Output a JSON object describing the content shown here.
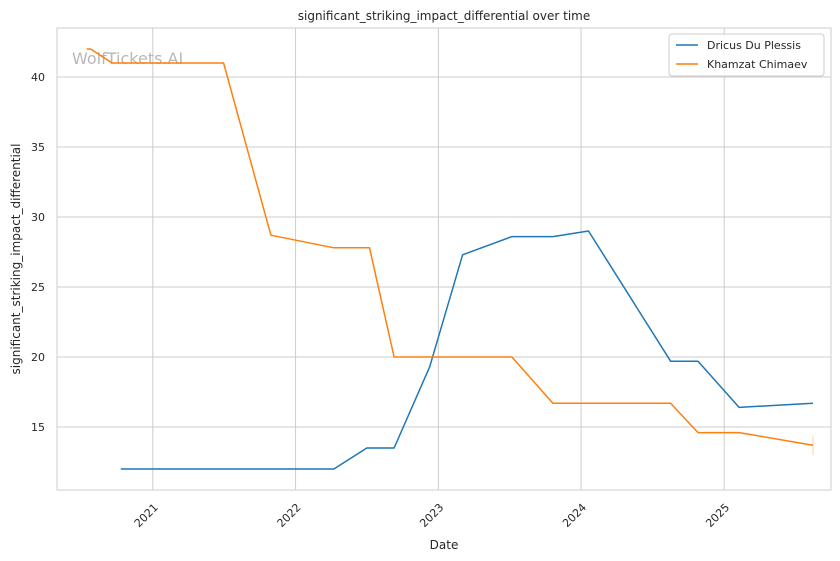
{
  "chart_data": {
    "type": "line",
    "title": "significant_striking_impact_differential over time",
    "xlabel": "Date",
    "ylabel": "significant_striking_impact_differential",
    "watermark": "WolfTickets.AI",
    "xlim": [
      "2020-05-01",
      "2025-10-01"
    ],
    "ylim": [
      10.5,
      43.5
    ],
    "x_ticks": [
      {
        "date": "2021-01-01",
        "label": "2021"
      },
      {
        "date": "2022-01-01",
        "label": "2022"
      },
      {
        "date": "2023-01-01",
        "label": "2023"
      },
      {
        "date": "2024-01-01",
        "label": "2024"
      },
      {
        "date": "2025-01-01",
        "label": "2025"
      }
    ],
    "y_ticks": [
      15,
      20,
      25,
      30,
      35,
      40
    ],
    "grid": true,
    "legend_position": "top-right",
    "series": [
      {
        "name": "Dricus Du Plessis",
        "color": "#1f77b4",
        "points": [
          {
            "x": "2020-10-11",
            "y": 12.0
          },
          {
            "x": "2022-04-09",
            "y": 12.0
          },
          {
            "x": "2022-07-02",
            "y": 13.5
          },
          {
            "x": "2022-09-10",
            "y": 13.5
          },
          {
            "x": "2022-12-10",
            "y": 19.3
          },
          {
            "x": "2023-03-04",
            "y": 27.3
          },
          {
            "x": "2023-07-08",
            "y": 28.6
          },
          {
            "x": "2023-10-21",
            "y": 28.6
          },
          {
            "x": "2024-01-20",
            "y": 29.0
          },
          {
            "x": "2024-08-17",
            "y": 19.7
          },
          {
            "x": "2024-10-26",
            "y": 19.7
          },
          {
            "x": "2025-02-08",
            "y": 16.4
          },
          {
            "x": "2025-08-16",
            "y": 16.7
          }
        ]
      },
      {
        "name": "Khamzat Chimaev",
        "color": "#ff7f0e",
        "points": [
          {
            "x": "2020-07-16",
            "y": 42.0
          },
          {
            "x": "2020-07-26",
            "y": 42.0
          },
          {
            "x": "2020-09-19",
            "y": 41.0
          },
          {
            "x": "2021-07-01",
            "y": 41.0
          },
          {
            "x": "2021-10-30",
            "y": 28.7
          },
          {
            "x": "2022-04-09",
            "y": 27.8
          },
          {
            "x": "2022-07-09",
            "y": 27.8
          },
          {
            "x": "2022-09-10",
            "y": 20.0
          },
          {
            "x": "2023-07-08",
            "y": 20.0
          },
          {
            "x": "2023-10-21",
            "y": 16.7
          },
          {
            "x": "2024-08-17",
            "y": 16.7
          },
          {
            "x": "2024-10-26",
            "y": 14.6
          },
          {
            "x": "2025-02-08",
            "y": 14.6
          },
          {
            "x": "2025-08-16",
            "y": 13.7
          }
        ]
      }
    ]
  }
}
